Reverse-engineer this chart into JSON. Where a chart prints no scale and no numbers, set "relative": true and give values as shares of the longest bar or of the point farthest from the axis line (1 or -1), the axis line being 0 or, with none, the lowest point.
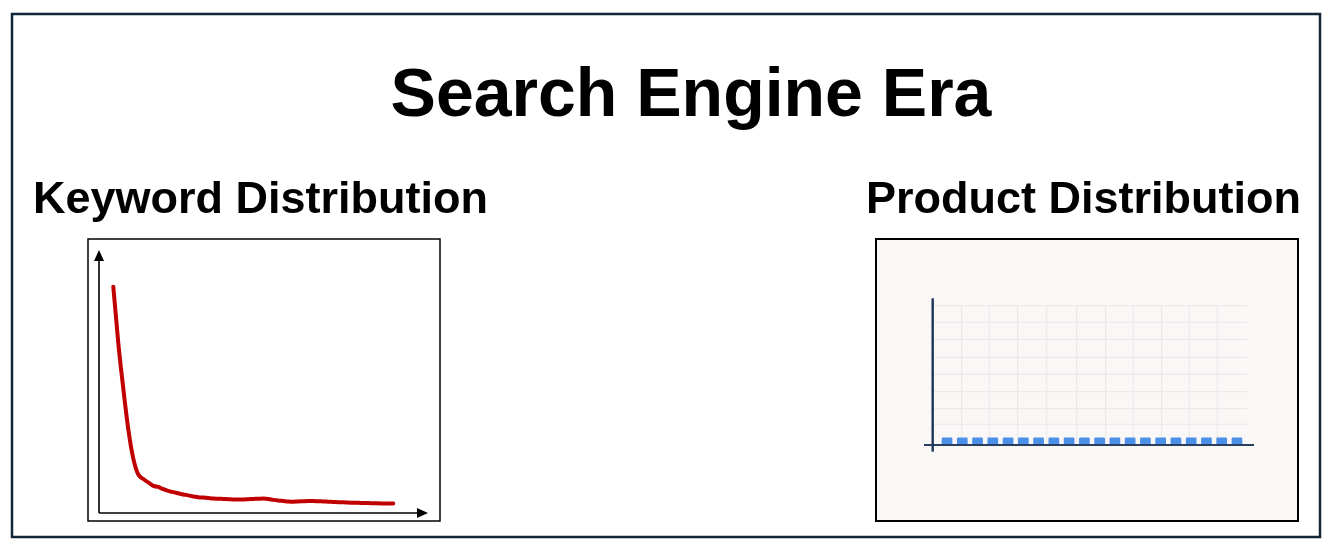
{
  "chart_data": [
    {
      "type": "other",
      "title": "Search Engine Era"
    },
    {
      "type": "line",
      "title": "Keyword Distribution",
      "relative": true,
      "color": "#c00000",
      "categories": [
        null,
        null,
        null,
        null,
        null,
        null,
        null,
        null,
        null,
        null,
        null,
        null,
        null,
        null,
        null,
        null,
        null,
        null,
        null,
        null,
        null,
        null,
        null,
        null,
        null,
        null,
        null,
        null,
        null,
        null,
        null,
        null,
        null,
        null,
        null,
        null,
        null,
        null,
        null,
        null,
        null,
        null,
        null,
        null,
        null,
        null,
        null,
        null,
        null,
        null,
        null,
        null,
        null,
        null,
        null,
        null,
        null
      ],
      "values": [
        1,
        0.75,
        0.55,
        0.37,
        0.24,
        0.17,
        0.15,
        0.135,
        0.12,
        0.115,
        0.105,
        0.098,
        0.092,
        0.087,
        0.082,
        0.078,
        0.073,
        0.07,
        0.068,
        0.066,
        0.064,
        0.063,
        0.062,
        0.061,
        0.06,
        0.06,
        0.06,
        0.061,
        0.062,
        0.063,
        0.064,
        0.062,
        0.058,
        0.055,
        0.053,
        0.051,
        0.05,
        0.051,
        0.052,
        0.053,
        0.053,
        0.052,
        0.051,
        0.05,
        0.049,
        0.048,
        0.047,
        0.046,
        0.045,
        0.045,
        0.044,
        0.044,
        0.043,
        0.043,
        0.042,
        0.042,
        0.042
      ]
    },
    {
      "type": "bar",
      "title": "Product Distribution",
      "relative": true,
      "color": "#4a8fe8",
      "grid": true,
      "categories": [
        null,
        null,
        null,
        null,
        null,
        null,
        null,
        null,
        null,
        null,
        null,
        null,
        null,
        null,
        null,
        null,
        null,
        null,
        null,
        null
      ],
      "values": [
        1,
        1,
        1,
        1,
        1,
        1,
        1,
        1,
        1,
        1,
        1,
        1,
        1,
        1,
        1,
        1,
        1,
        1,
        1,
        1
      ]
    }
  ]
}
